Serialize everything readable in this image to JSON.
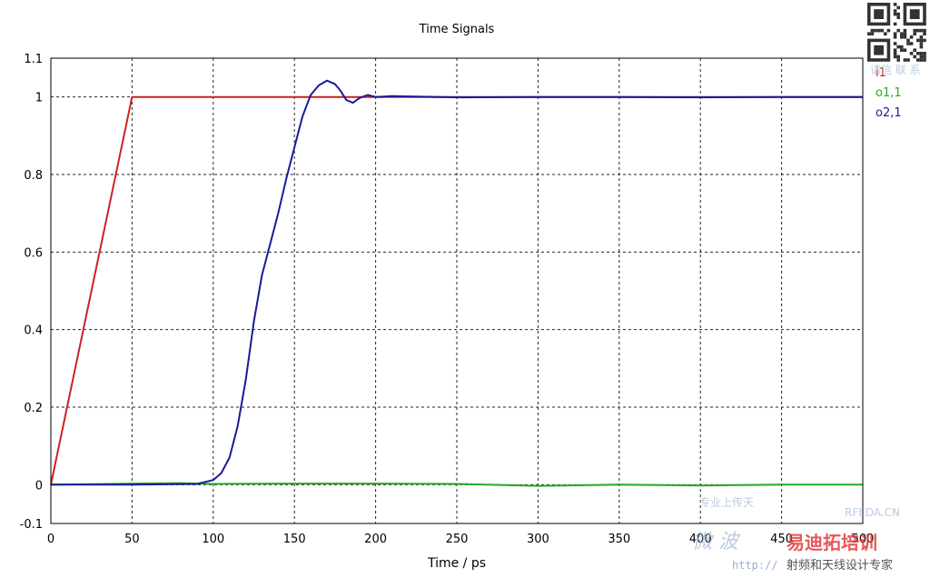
{
  "chart_data": {
    "type": "line",
    "title": "Time Signals",
    "xlabel": "Time / ps",
    "ylabel": "",
    "xlim": [
      0,
      500
    ],
    "ylim": [
      -0.1,
      1.1
    ],
    "xticks": [
      0,
      50,
      100,
      150,
      200,
      250,
      300,
      350,
      400,
      450,
      500
    ],
    "yticks": [
      -0.1,
      0,
      0.2,
      0.4,
      0.6,
      0.8,
      1,
      1.1
    ],
    "ytick_labels": [
      "-0.1",
      "0",
      "0.2",
      "0.4",
      "0.6",
      "0.8",
      "1",
      "1.1"
    ],
    "grid": true,
    "legend_position": "right",
    "series": [
      {
        "name": "i1",
        "color": "#cc2222",
        "x": [
          0,
          50,
          500
        ],
        "y": [
          0,
          1,
          1
        ]
      },
      {
        "name": "o1,1",
        "color": "#22aa22",
        "x": [
          0,
          50,
          80,
          100,
          150,
          200,
          250,
          300,
          350,
          400,
          450,
          500
        ],
        "y": [
          0,
          0.003,
          0.004,
          0.002,
          0.003,
          0.003,
          0.002,
          -0.003,
          0.0,
          -0.002,
          0.0,
          0.0
        ]
      },
      {
        "name": "o2,1",
        "color": "#1a1a99",
        "x": [
          0,
          50,
          90,
          100,
          105,
          110,
          115,
          120,
          125,
          130,
          135,
          140,
          145,
          150,
          155,
          160,
          165,
          170,
          175,
          178,
          182,
          186,
          190,
          195,
          200,
          210,
          250,
          300,
          350,
          400,
          450,
          500
        ],
        "y": [
          0,
          0,
          0.002,
          0.012,
          0.03,
          0.07,
          0.15,
          0.27,
          0.42,
          0.54,
          0.62,
          0.7,
          0.79,
          0.87,
          0.95,
          1.005,
          1.03,
          1.042,
          1.033,
          1.018,
          0.992,
          0.985,
          0.997,
          1.005,
          1.0,
          1.002,
          0.999,
          1.0,
          1.0,
          0.999,
          1.0,
          1.0
        ]
      }
    ]
  },
  "watermark": {
    "qr_caption": "请信 联 系",
    "logo_cn_left": "微 波",
    "logo_cn_right": "易迪拓培训",
    "logo_en": "RFEDA.CN",
    "slogan_top": "专业上传天",
    "url": "http://",
    "tagline": "射频和天线设计专家"
  }
}
